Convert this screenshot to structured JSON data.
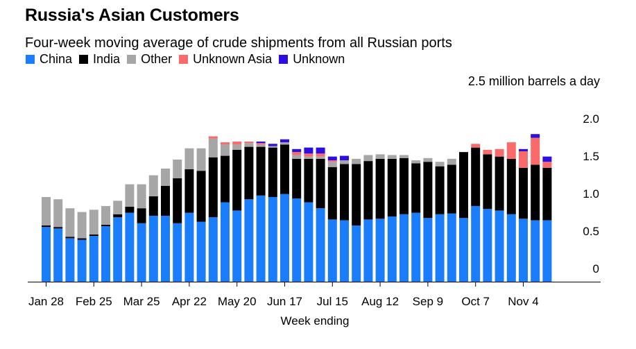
{
  "title": "Russia's Asian Customers",
  "subtitle": "Four-week moving average of crude shipments from all Russian ports",
  "colors": {
    "China": "#1a7dfb",
    "India": "#000000",
    "Other": "#a6a6a6",
    "Unknown Asia": "#fb6a6a",
    "Unknown": "#2c0fe0"
  },
  "chart_data": {
    "type": "bar",
    "stacked": true,
    "title": "Russia's Asian Customers",
    "subtitle": "Four-week moving average of crude shipments from all Russian ports",
    "unit_label": "2.5 million barrels a day",
    "xlabel": "Week ending",
    "ylabel": "",
    "ylim": [
      0,
      2.5
    ],
    "yticks": [
      0,
      0.5,
      1.0,
      1.5,
      2.0
    ],
    "ytick_labels": [
      "0",
      "0.5",
      "1.0",
      "1.5",
      "2.0"
    ],
    "x_tick_labels": [
      {
        "index": 0,
        "label": "Jan 28"
      },
      {
        "index": 4,
        "label": "Feb 25"
      },
      {
        "index": 8,
        "label": "Mar 25"
      },
      {
        "index": 12,
        "label": "Apr 22"
      },
      {
        "index": 16,
        "label": "May 20"
      },
      {
        "index": 20,
        "label": "Jun 17"
      },
      {
        "index": 24,
        "label": "Jul 15"
      },
      {
        "index": 28,
        "label": "Aug 12"
      },
      {
        "index": 32,
        "label": "Sep 9"
      },
      {
        "index": 36,
        "label": "Oct 7"
      },
      {
        "index": 40,
        "label": "Nov 4"
      }
    ],
    "legend": [
      "China",
      "India",
      "Other",
      "Unknown Asia",
      "Unknown"
    ],
    "series": [
      {
        "name": "China",
        "values": [
          0.73,
          0.71,
          0.58,
          0.56,
          0.61,
          0.74,
          0.86,
          0.92,
          0.78,
          0.88,
          0.88,
          0.78,
          0.92,
          0.8,
          0.86,
          1.06,
          0.95,
          1.1,
          1.15,
          1.13,
          1.17,
          1.11,
          1.06,
          0.98,
          0.83,
          0.82,
          0.75,
          0.83,
          0.84,
          0.87,
          0.9,
          0.92,
          0.85,
          0.9,
          0.91,
          0.85,
          1.01,
          0.97,
          0.95,
          0.9,
          0.84,
          0.82,
          0.82
        ]
      },
      {
        "name": "India",
        "values": [
          0.02,
          0.02,
          0.02,
          0.02,
          0.02,
          0.02,
          0.04,
          0.08,
          0.2,
          0.26,
          0.4,
          0.6,
          0.58,
          0.68,
          0.8,
          0.62,
          0.81,
          0.7,
          0.65,
          0.66,
          0.66,
          0.53,
          0.58,
          0.66,
          0.7,
          0.75,
          0.82,
          0.78,
          0.8,
          0.77,
          0.75,
          0.66,
          0.75,
          0.64,
          0.65,
          0.88,
          0.78,
          0.73,
          0.72,
          0.74,
          0.68,
          0.74,
          0.7
        ]
      },
      {
        "name": "Other",
        "values": [
          0.38,
          0.37,
          0.38,
          0.35,
          0.33,
          0.25,
          0.18,
          0.3,
          0.32,
          0.28,
          0.23,
          0.25,
          0.28,
          0.3,
          0.25,
          0.15,
          0.07,
          0.05,
          0.03,
          0.02,
          0.03,
          0.05,
          0.03,
          0.03,
          0.07,
          0.05,
          0.07,
          0.08,
          0.06,
          0.05,
          0.04,
          0.04,
          0.05,
          0.06,
          0.08,
          0,
          0,
          0,
          0,
          0,
          0,
          0,
          0
        ]
      },
      {
        "name": "Unknown Asia",
        "values": [
          0,
          0,
          0,
          0,
          0,
          0,
          0,
          0,
          0,
          0,
          0,
          0,
          0,
          0,
          0.03,
          0.03,
          0.04,
          0.02,
          0.02,
          0,
          0,
          0.04,
          0.04,
          0.04,
          0.02,
          0,
          0,
          0,
          0,
          0,
          0,
          0,
          0,
          0,
          0,
          0,
          0.05,
          0.06,
          0.1,
          0.22,
          0.22,
          0.36,
          0.08
        ]
      },
      {
        "name": "Unknown",
        "values": [
          0,
          0,
          0,
          0,
          0,
          0,
          0,
          0,
          0,
          0,
          0,
          0,
          0,
          0,
          0,
          0,
          0,
          0,
          0.02,
          0.03,
          0.04,
          0.04,
          0.08,
          0.08,
          0.05,
          0.06,
          0,
          0,
          0,
          0,
          0,
          0,
          0,
          0,
          0,
          0,
          0,
          0,
          0,
          0,
          0.03,
          0.05,
          0.07
        ]
      }
    ]
  }
}
